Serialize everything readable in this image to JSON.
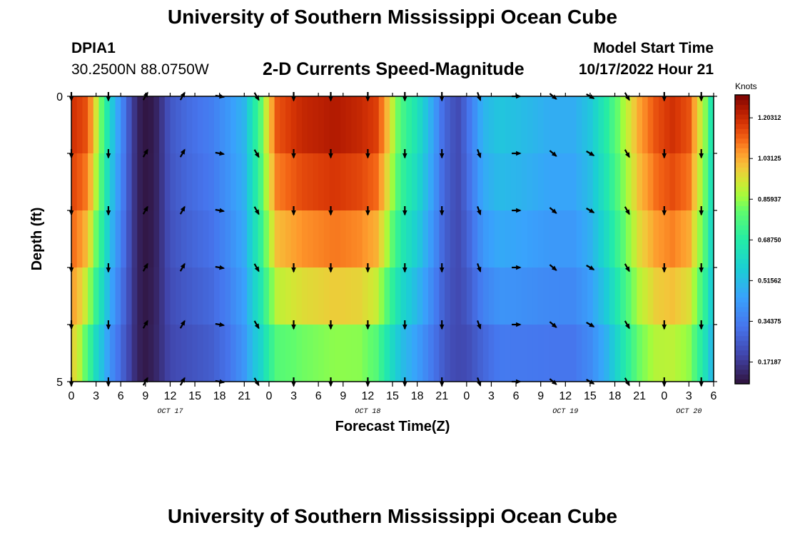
{
  "header": {
    "title": "University of Southern Mississippi Ocean Cube",
    "station": "DPIA1",
    "coords": "30.2500N  88.0750W",
    "chart_title": "2-D Currents Speed-Magnitude",
    "model_label": "Model Start Time",
    "model_time": "10/17/2022 Hour 21"
  },
  "footer": {
    "title": "University of Southern Mississippi Ocean Cube"
  },
  "chart_data": {
    "type": "heatmap",
    "title": "2-D Currents Speed-Magnitude",
    "xlabel": "Forecast Time(Z)",
    "ylabel": "Depth (ft)",
    "x_ticks": [
      "0",
      "3",
      "6",
      "9",
      "12",
      "15",
      "18",
      "21",
      "0",
      "3",
      "6",
      "9",
      "12",
      "15",
      "18",
      "21",
      "0",
      "3",
      "6",
      "9",
      "12",
      "15",
      "18",
      "21",
      "0",
      "3",
      "6"
    ],
    "day_labels": [
      {
        "label": "OCT 17",
        "hour": 12
      },
      {
        "label": "OCT 18",
        "hour": 36
      },
      {
        "label": "OCT 19",
        "hour": 60
      },
      {
        "label": "OCT 20",
        "hour": 75
      }
    ],
    "y_ticks": [
      "0",
      "5"
    ],
    "ylim": [
      0,
      5
    ],
    "xlim": [
      0,
      78
    ],
    "colorbar": {
      "label": "Knots",
      "min": 0.08,
      "max": 1.3,
      "ticks": [
        "0.17187",
        "0.34375",
        "0.51562",
        "0.68750",
        "0.85937",
        "1.03125",
        "1.20312"
      ],
      "tick_values": [
        0.17187,
        0.34375,
        0.51562,
        0.6875,
        0.85937,
        1.03125,
        1.20312
      ]
    },
    "speed_profile_surface": [
      [
        0,
        1.2
      ],
      [
        2,
        1.15
      ],
      [
        3,
        0.95
      ],
      [
        4,
        0.75
      ],
      [
        5,
        0.55
      ],
      [
        6,
        0.4
      ],
      [
        7,
        0.25
      ],
      [
        8,
        0.12
      ],
      [
        9,
        0.09
      ],
      [
        10,
        0.1
      ],
      [
        11,
        0.17
      ],
      [
        12,
        0.25
      ],
      [
        14,
        0.3
      ],
      [
        17,
        0.35
      ],
      [
        19,
        0.42
      ],
      [
        21,
        0.5
      ],
      [
        22,
        0.65
      ],
      [
        23,
        0.8
      ],
      [
        24,
        1.0
      ],
      [
        25,
        1.15
      ],
      [
        28,
        1.22
      ],
      [
        32,
        1.25
      ],
      [
        35,
        1.22
      ],
      [
        37,
        1.18
      ],
      [
        38,
        1.08
      ],
      [
        39,
        0.92
      ],
      [
        40,
        0.78
      ],
      [
        42,
        0.65
      ],
      [
        44,
        0.45
      ],
      [
        45,
        0.32
      ],
      [
        46,
        0.25
      ],
      [
        47,
        0.22
      ],
      [
        48,
        0.3
      ],
      [
        49,
        0.4
      ],
      [
        50,
        0.5
      ],
      [
        52,
        0.55
      ],
      [
        55,
        0.52
      ],
      [
        58,
        0.48
      ],
      [
        61,
        0.48
      ],
      [
        63,
        0.55
      ],
      [
        65,
        0.7
      ],
      [
        67,
        0.88
      ],
      [
        69,
        1.05
      ],
      [
        71,
        1.15
      ],
      [
        73,
        1.2
      ],
      [
        75,
        1.15
      ],
      [
        77,
        0.85
      ],
      [
        78,
        0.6
      ]
    ],
    "speed_profile_bottom": [
      [
        0,
        0.95
      ],
      [
        1,
        0.85
      ],
      [
        2,
        0.7
      ],
      [
        3,
        0.55
      ],
      [
        4,
        0.45
      ],
      [
        5,
        0.35
      ],
      [
        7,
        0.2
      ],
      [
        8,
        0.12
      ],
      [
        9,
        0.1
      ],
      [
        10,
        0.12
      ],
      [
        12,
        0.2
      ],
      [
        14,
        0.22
      ],
      [
        17,
        0.25
      ],
      [
        19,
        0.3
      ],
      [
        21,
        0.4
      ],
      [
        22,
        0.5
      ],
      [
        23,
        0.55
      ],
      [
        24,
        0.65
      ],
      [
        25,
        0.72
      ],
      [
        28,
        0.75
      ],
      [
        32,
        0.78
      ],
      [
        35,
        0.78
      ],
      [
        37,
        0.72
      ],
      [
        38,
        0.62
      ],
      [
        39,
        0.55
      ],
      [
        40,
        0.48
      ],
      [
        42,
        0.4
      ],
      [
        44,
        0.3
      ],
      [
        46,
        0.22
      ],
      [
        48,
        0.2
      ],
      [
        50,
        0.25
      ],
      [
        52,
        0.3
      ],
      [
        55,
        0.3
      ],
      [
        58,
        0.3
      ],
      [
        61,
        0.3
      ],
      [
        63,
        0.35
      ],
      [
        65,
        0.45
      ],
      [
        67,
        0.62
      ],
      [
        69,
        0.78
      ],
      [
        71,
        0.85
      ],
      [
        73,
        0.85
      ],
      [
        75,
        0.8
      ],
      [
        77,
        0.6
      ],
      [
        78,
        0.45
      ]
    ],
    "vector_times": [
      0,
      4.5,
      9,
      13.5,
      18,
      22.5,
      27,
      31.5,
      36,
      40.5,
      45,
      49.5,
      54,
      58.5,
      63,
      67.5,
      72,
      76.5
    ],
    "vector_depths": [
      0,
      1,
      2,
      3,
      4,
      5
    ],
    "vector_angles_deg": [
      180,
      180,
      30,
      30,
      100,
      150,
      180,
      180,
      180,
      180,
      180,
      160,
      90,
      130,
      120,
      150,
      180,
      180
    ],
    "vector_lengths": [
      1,
      1,
      1,
      1,
      1,
      1,
      1,
      1,
      1,
      1,
      1,
      1,
      1,
      1,
      1,
      1,
      1,
      1
    ]
  }
}
